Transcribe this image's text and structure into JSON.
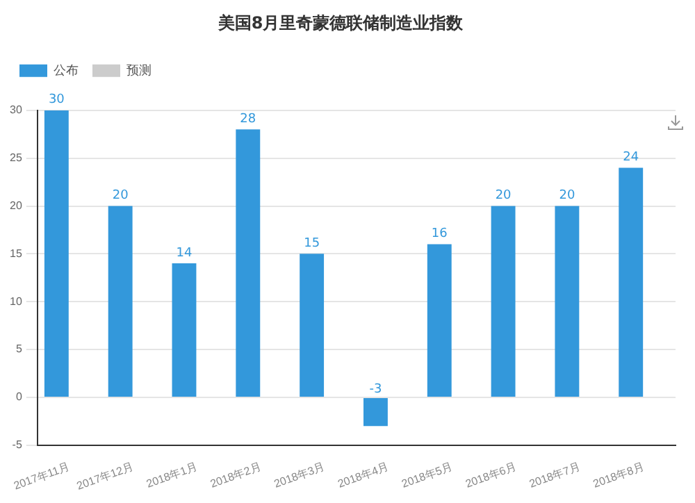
{
  "chart_data": {
    "type": "bar",
    "title": "美国8月里奇蒙德联储制造业指数",
    "categories": [
      "2017年11月",
      "2017年12月",
      "2018年1月",
      "2018年2月",
      "2018年3月",
      "2018年4月",
      "2018年5月",
      "2018年6月",
      "2018年7月",
      "2018年8月"
    ],
    "series": [
      {
        "name": "公布",
        "color": "#3398db",
        "values": [
          30,
          20,
          14,
          28,
          15,
          -3,
          16,
          20,
          20,
          24
        ]
      },
      {
        "name": "预测",
        "color": "#cccccc",
        "values": [
          null,
          null,
          null,
          null,
          null,
          null,
          null,
          null,
          null,
          null
        ]
      }
    ],
    "ylim": [
      -5,
      30
    ],
    "yticks": [
      -5,
      0,
      5,
      10,
      15,
      20,
      25,
      30
    ],
    "grid": "y",
    "legend": "top left",
    "data_labels": true
  }
}
